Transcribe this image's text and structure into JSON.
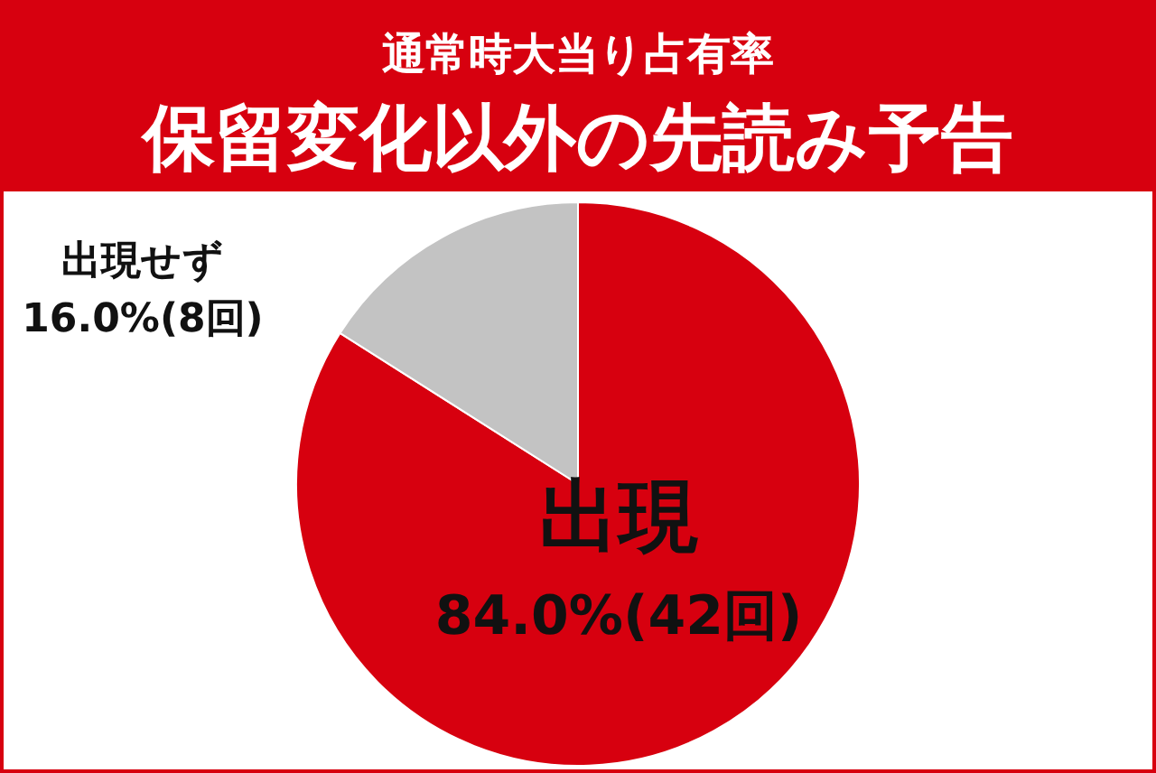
{
  "chart_data": {
    "type": "pie",
    "title": "通常時大当り占有率",
    "subtitle": "保留変化以外の先読み予告",
    "categories": [
      "出現",
      "出現せず"
    ],
    "values": [
      84.0,
      16.0
    ],
    "colors": [
      "#d7000f",
      "#c3c3c3"
    ],
    "value_labels": [
      "84.0%(42回)",
      "16.0%(8回)"
    ]
  }
}
